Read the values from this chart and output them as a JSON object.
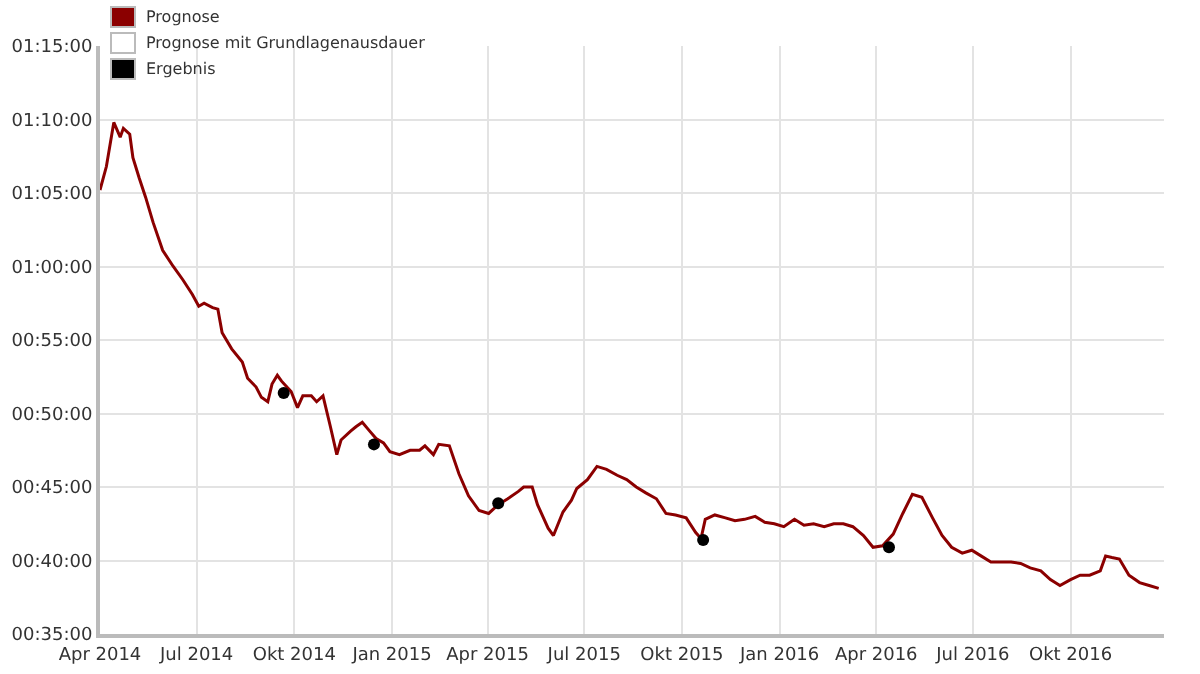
{
  "chart_data": {
    "type": "line",
    "x": [
      "2014-04-01",
      "2014-04-07",
      "2014-04-14",
      "2014-04-20",
      "2014-04-23",
      "2014-04-29",
      "2014-05-02",
      "2014-05-08",
      "2014-05-14",
      "2014-05-21",
      "2014-05-30",
      "2014-06-09",
      "2014-06-18",
      "2014-06-27",
      "2014-07-03",
      "2014-07-08",
      "2014-07-16",
      "2014-07-21",
      "2014-07-25",
      "2014-08-03",
      "2014-08-13",
      "2014-08-18",
      "2014-08-26",
      "2014-08-31",
      "2014-09-06",
      "2014-09-10",
      "2014-09-15",
      "2014-09-19",
      "2014-09-24",
      "2014-09-28",
      "2014-10-04",
      "2014-10-09",
      "2014-10-17",
      "2014-10-22",
      "2014-10-28",
      "2014-11-04",
      "2014-11-10",
      "2014-11-14",
      "2014-11-23",
      "2014-11-28",
      "2014-12-04",
      "2014-12-11",
      "2014-12-17",
      "2014-12-24",
      "2014-12-30",
      "2015-01-08",
      "2015-01-18",
      "2015-01-27",
      "2015-02-01",
      "2015-02-09",
      "2015-02-14",
      "2015-02-24",
      "2015-03-05",
      "2015-03-14",
      "2015-03-24",
      "2015-04-02",
      "2015-04-11",
      "2015-04-20",
      "2015-04-30",
      "2015-05-05",
      "2015-05-13",
      "2015-05-18",
      "2015-05-28",
      "2015-06-02",
      "2015-06-11",
      "2015-06-19",
      "2015-06-24",
      "2015-07-04",
      "2015-07-13",
      "2015-07-22",
      "2015-08-01",
      "2015-08-10",
      "2015-08-19",
      "2015-08-28",
      "2015-09-07",
      "2015-09-16",
      "2015-09-25",
      "2015-10-05",
      "2015-10-14",
      "2015-10-19",
      "2015-10-23",
      "2015-11-01",
      "2015-11-11",
      "2015-11-20",
      "2015-11-29",
      "2015-12-09",
      "2015-12-18",
      "2015-12-27",
      "2016-01-05",
      "2016-01-15",
      "2016-01-24",
      "2016-02-02",
      "2016-02-12",
      "2016-02-21",
      "2016-03-01",
      "2016-03-10",
      "2016-03-20",
      "2016-03-29",
      "2016-04-07",
      "2016-04-17",
      "2016-04-26",
      "2016-05-05",
      "2016-05-14",
      "2016-05-24",
      "2016-06-02",
      "2016-06-11",
      "2016-06-21",
      "2016-06-30",
      "2016-07-09",
      "2016-07-18",
      "2016-07-28",
      "2016-08-06",
      "2016-08-15",
      "2016-08-24",
      "2016-09-03",
      "2016-09-12",
      "2016-09-21",
      "2016-10-01",
      "2016-10-10",
      "2016-10-19",
      "2016-10-29",
      "2016-11-03",
      "2016-11-09",
      "2016-11-16",
      "2016-11-25",
      "2016-12-05",
      "2016-12-14",
      "2016-12-23"
    ],
    "series": [
      {
        "name": "Prognose",
        "color": "#8b0000",
        "values": [
          65.2,
          66.8,
          69.8,
          68.8,
          69.4,
          69.0,
          67.4,
          66.0,
          64.7,
          63.0,
          61.1,
          60.0,
          59.1,
          58.1,
          57.3,
          57.5,
          57.2,
          57.1,
          55.5,
          54.4,
          53.5,
          52.4,
          51.8,
          51.1,
          50.8,
          52.0,
          52.6,
          52.2,
          51.8,
          51.5,
          50.4,
          51.2,
          51.2,
          50.8,
          51.2,
          49.1,
          47.2,
          48.2,
          48.8,
          49.1,
          49.4,
          48.8,
          48.3,
          48.0,
          47.4,
          47.2,
          47.5,
          47.5,
          47.8,
          47.2,
          47.9,
          47.8,
          45.9,
          44.4,
          43.4,
          43.2,
          43.8,
          44.2,
          44.7,
          45.0,
          45.0,
          43.8,
          42.2,
          41.7,
          43.3,
          44.1,
          44.9,
          45.5,
          46.4,
          46.2,
          45.8,
          45.5,
          45.0,
          44.6,
          44.2,
          43.2,
          43.1,
          42.9,
          41.9,
          41.5,
          42.8,
          43.1,
          42.9,
          42.7,
          42.8,
          43.0,
          42.6,
          42.5,
          42.3,
          42.8,
          42.4,
          42.5,
          42.3,
          42.5,
          42.5,
          42.3,
          41.7,
          40.9,
          41.0,
          41.8,
          43.2,
          44.5,
          44.3,
          42.9,
          41.7,
          40.9,
          40.5,
          40.7,
          40.3,
          39.9,
          39.9,
          39.9,
          39.8,
          39.5,
          39.3,
          38.7,
          38.3,
          38.7,
          39.0,
          39.0,
          39.3,
          40.3,
          40.2,
          40.1,
          39.0,
          38.5,
          38.3,
          38.1
        ]
      },
      {
        "name": "Prognose mit Grundlagenausdauer",
        "type": "line",
        "color": "#ffffff",
        "values": [
          null,
          null,
          null,
          null,
          null,
          null,
          null,
          null,
          null,
          null,
          null,
          null,
          null,
          null,
          null,
          null,
          null,
          null,
          null,
          null,
          null,
          null,
          null,
          null,
          null,
          null,
          null,
          null,
          null,
          null,
          null,
          null,
          null,
          null,
          null,
          null,
          null,
          null,
          null,
          null,
          null,
          null,
          null,
          null,
          null,
          null,
          null,
          null,
          null,
          null,
          null,
          null,
          null,
          null,
          null,
          null,
          null,
          null,
          null,
          null,
          null,
          null,
          null,
          null,
          null,
          null,
          null,
          null,
          null,
          null,
          null,
          null,
          null,
          null,
          null,
          null,
          null,
          null,
          null,
          null,
          null,
          null,
          null,
          null,
          null,
          null,
          null,
          null,
          null,
          null,
          null,
          null,
          null,
          null,
          null,
          null,
          null,
          null,
          null,
          null,
          null,
          null,
          null,
          null,
          null,
          null,
          null,
          null,
          null,
          null,
          null,
          null,
          null,
          null,
          null,
          null,
          null,
          null,
          null,
          null,
          null,
          null,
          null,
          null,
          null,
          null,
          null,
          null
        ]
      },
      {
        "name": "Ergebnis",
        "type": "scatter",
        "color": "#000000",
        "marker": "circle",
        "x": [
          "2014-09-21",
          "2014-12-15",
          "2015-04-11",
          "2015-10-21",
          "2016-04-13"
        ],
        "values": [
          51.4,
          47.9,
          43.9,
          41.4,
          40.9
        ]
      }
    ],
    "xlim": [
      "2014-04-01",
      "2016-12-28"
    ],
    "xticks": [
      {
        "value": "2014-04-01",
        "label": "Apr 2014"
      },
      {
        "value": "2014-07-01",
        "label": "Jul 2014"
      },
      {
        "value": "2014-10-01",
        "label": "Okt 2014"
      },
      {
        "value": "2015-01-01",
        "label": "Jan 2015"
      },
      {
        "value": "2015-04-01",
        "label": "Apr 2015"
      },
      {
        "value": "2015-07-01",
        "label": "Jul 2015"
      },
      {
        "value": "2015-10-01",
        "label": "Okt 2015"
      },
      {
        "value": "2016-01-01",
        "label": "Jan 2016"
      },
      {
        "value": "2016-04-01",
        "label": "Apr 2016"
      },
      {
        "value": "2016-07-01",
        "label": "Jul 2016"
      },
      {
        "value": "2016-10-01",
        "label": "Okt 2016"
      }
    ],
    "ylim": [
      35,
      75
    ],
    "yticks": [
      {
        "value": 35,
        "label": "00:35:00"
      },
      {
        "value": 40,
        "label": "00:40:00"
      },
      {
        "value": 45,
        "label": "00:45:00"
      },
      {
        "value": 50,
        "label": "00:50:00"
      },
      {
        "value": 55,
        "label": "00:55:00"
      },
      {
        "value": 60,
        "label": "01:00:00"
      },
      {
        "value": 65,
        "label": "01:05:00"
      },
      {
        "value": 70,
        "label": "01:10:00"
      },
      {
        "value": 75,
        "label": "01:15:00"
      }
    ],
    "grid": true,
    "legend": "top left"
  }
}
